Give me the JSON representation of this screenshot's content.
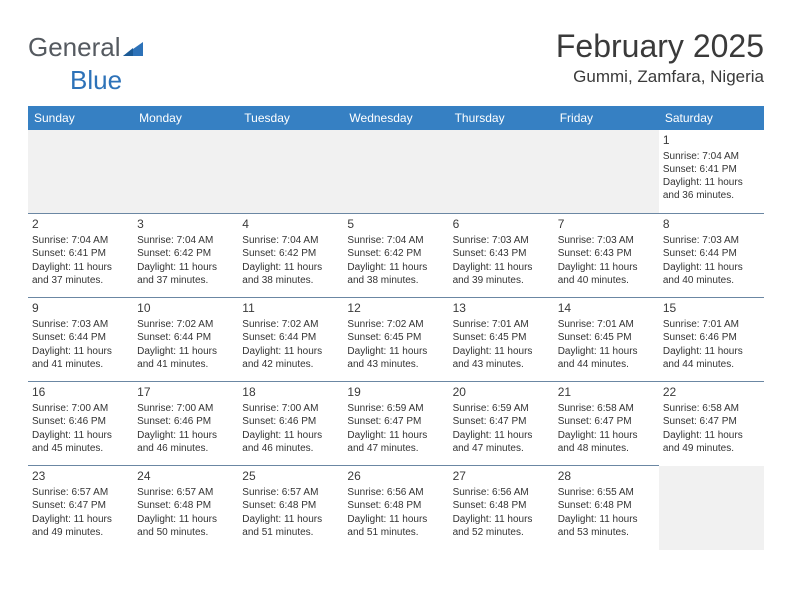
{
  "logo": {
    "text_general": "General",
    "text_blue": "Blue"
  },
  "title": "February 2025",
  "location": "Gummi, Zamfara, Nigeria",
  "colors": {
    "header_bg": "#3680c3",
    "header_text": "#ffffff",
    "row_border": "#6b87a3",
    "blank_bg": "#f1f1f1",
    "body_text": "#333333",
    "logo_grey": "#555a60",
    "logo_blue": "#2d72b8"
  },
  "day_names": [
    "Sunday",
    "Monday",
    "Tuesday",
    "Wednesday",
    "Thursday",
    "Friday",
    "Saturday"
  ],
  "weeks": [
    [
      null,
      null,
      null,
      null,
      null,
      null,
      {
        "n": "1",
        "sunrise": "7:04 AM",
        "sunset": "6:41 PM",
        "dl_h": "11",
        "dl_m": "36"
      }
    ],
    [
      {
        "n": "2",
        "sunrise": "7:04 AM",
        "sunset": "6:41 PM",
        "dl_h": "11",
        "dl_m": "37"
      },
      {
        "n": "3",
        "sunrise": "7:04 AM",
        "sunset": "6:42 PM",
        "dl_h": "11",
        "dl_m": "37"
      },
      {
        "n": "4",
        "sunrise": "7:04 AM",
        "sunset": "6:42 PM",
        "dl_h": "11",
        "dl_m": "38"
      },
      {
        "n": "5",
        "sunrise": "7:04 AM",
        "sunset": "6:42 PM",
        "dl_h": "11",
        "dl_m": "38"
      },
      {
        "n": "6",
        "sunrise": "7:03 AM",
        "sunset": "6:43 PM",
        "dl_h": "11",
        "dl_m": "39"
      },
      {
        "n": "7",
        "sunrise": "7:03 AM",
        "sunset": "6:43 PM",
        "dl_h": "11",
        "dl_m": "40"
      },
      {
        "n": "8",
        "sunrise": "7:03 AM",
        "sunset": "6:44 PM",
        "dl_h": "11",
        "dl_m": "40"
      }
    ],
    [
      {
        "n": "9",
        "sunrise": "7:03 AM",
        "sunset": "6:44 PM",
        "dl_h": "11",
        "dl_m": "41"
      },
      {
        "n": "10",
        "sunrise": "7:02 AM",
        "sunset": "6:44 PM",
        "dl_h": "11",
        "dl_m": "41"
      },
      {
        "n": "11",
        "sunrise": "7:02 AM",
        "sunset": "6:44 PM",
        "dl_h": "11",
        "dl_m": "42"
      },
      {
        "n": "12",
        "sunrise": "7:02 AM",
        "sunset": "6:45 PM",
        "dl_h": "11",
        "dl_m": "43"
      },
      {
        "n": "13",
        "sunrise": "7:01 AM",
        "sunset": "6:45 PM",
        "dl_h": "11",
        "dl_m": "43"
      },
      {
        "n": "14",
        "sunrise": "7:01 AM",
        "sunset": "6:45 PM",
        "dl_h": "11",
        "dl_m": "44"
      },
      {
        "n": "15",
        "sunrise": "7:01 AM",
        "sunset": "6:46 PM",
        "dl_h": "11",
        "dl_m": "44"
      }
    ],
    [
      {
        "n": "16",
        "sunrise": "7:00 AM",
        "sunset": "6:46 PM",
        "dl_h": "11",
        "dl_m": "45"
      },
      {
        "n": "17",
        "sunrise": "7:00 AM",
        "sunset": "6:46 PM",
        "dl_h": "11",
        "dl_m": "46"
      },
      {
        "n": "18",
        "sunrise": "7:00 AM",
        "sunset": "6:46 PM",
        "dl_h": "11",
        "dl_m": "46"
      },
      {
        "n": "19",
        "sunrise": "6:59 AM",
        "sunset": "6:47 PM",
        "dl_h": "11",
        "dl_m": "47"
      },
      {
        "n": "20",
        "sunrise": "6:59 AM",
        "sunset": "6:47 PM",
        "dl_h": "11",
        "dl_m": "47"
      },
      {
        "n": "21",
        "sunrise": "6:58 AM",
        "sunset": "6:47 PM",
        "dl_h": "11",
        "dl_m": "48"
      },
      {
        "n": "22",
        "sunrise": "6:58 AM",
        "sunset": "6:47 PM",
        "dl_h": "11",
        "dl_m": "49"
      }
    ],
    [
      {
        "n": "23",
        "sunrise": "6:57 AM",
        "sunset": "6:47 PM",
        "dl_h": "11",
        "dl_m": "49"
      },
      {
        "n": "24",
        "sunrise": "6:57 AM",
        "sunset": "6:48 PM",
        "dl_h": "11",
        "dl_m": "50"
      },
      {
        "n": "25",
        "sunrise": "6:57 AM",
        "sunset": "6:48 PM",
        "dl_h": "11",
        "dl_m": "51"
      },
      {
        "n": "26",
        "sunrise": "6:56 AM",
        "sunset": "6:48 PM",
        "dl_h": "11",
        "dl_m": "51"
      },
      {
        "n": "27",
        "sunrise": "6:56 AM",
        "sunset": "6:48 PM",
        "dl_h": "11",
        "dl_m": "52"
      },
      {
        "n": "28",
        "sunrise": "6:55 AM",
        "sunset": "6:48 PM",
        "dl_h": "11",
        "dl_m": "53"
      },
      null
    ]
  ],
  "labels": {
    "sunrise": "Sunrise:",
    "sunset": "Sunset:",
    "daylight_prefix": "Daylight:",
    "hours_word": "hours",
    "and_word": "and",
    "minutes_word": "minutes."
  }
}
